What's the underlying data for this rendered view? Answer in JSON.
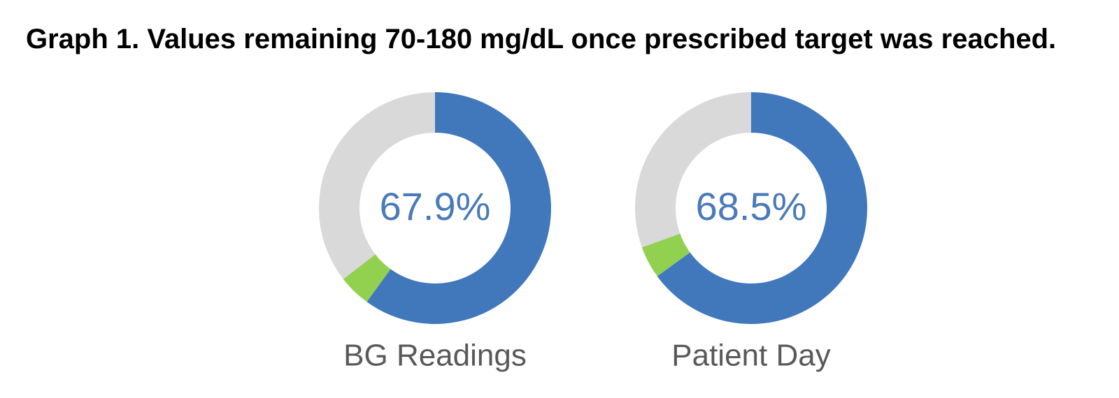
{
  "title": "Graph 1. Values remaining 70-180 mg/dL once prescribed target was reached.",
  "chart_data": [
    {
      "type": "donut",
      "label": "BG Readings",
      "center_label": "67.9%",
      "categories": [
        null,
        null,
        null
      ],
      "values": [
        60,
        4.5,
        35.5
      ],
      "colors": [
        "#4178bc",
        "#92d050",
        "#d9d9d9"
      ]
    },
    {
      "type": "donut",
      "label": "Patient Day",
      "center_label": "68.5%",
      "categories": [
        null,
        null,
        null
      ],
      "values": [
        65,
        4.5,
        30.5
      ],
      "colors": [
        "#4178bc",
        "#92d050",
        "#d9d9d9"
      ]
    }
  ]
}
